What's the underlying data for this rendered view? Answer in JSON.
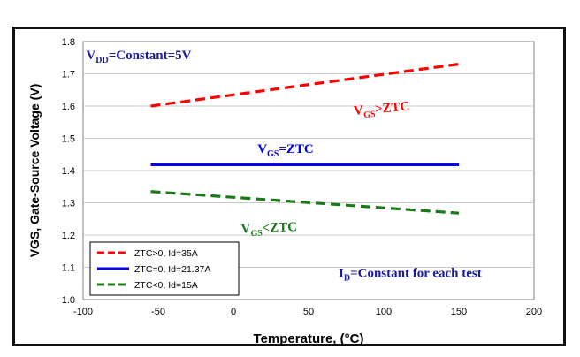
{
  "chart_data": {
    "type": "line",
    "xlabel": "Temperature, (°C)",
    "ylabel": "VGS, Gate-Source Voltage (V)",
    "xlim": [
      -100,
      200
    ],
    "ylim": [
      1.0,
      1.8
    ],
    "x_ticks": [
      "-100",
      "-50",
      "0",
      "50",
      "100",
      "150",
      "200"
    ],
    "y_ticks": [
      "1.0",
      "1.1",
      "1.2",
      "1.3",
      "1.4",
      "1.5",
      "1.6",
      "1.7",
      "1.8"
    ],
    "grid": "horizontal",
    "legend_position": "bottom-left",
    "series": [
      {
        "name": "ZTC>0, Id=35A",
        "color": "#ff0000",
        "dash": "dashed",
        "x": [
          -55,
          150
        ],
        "y": [
          1.6,
          1.73
        ]
      },
      {
        "name": "ZTC=0, Id=21.37A",
        "color": "#0000ee",
        "dash": "solid",
        "x": [
          -55,
          150
        ],
        "y": [
          1.418,
          1.418
        ]
      },
      {
        "name": "ZTC<0, Id=15A",
        "color": "#1a7a1a",
        "dash": "dashed",
        "x": [
          -55,
          150
        ],
        "y": [
          1.335,
          1.268
        ]
      }
    ],
    "annotations": [
      {
        "id": "vdd",
        "text": "VDD=Constant=5V",
        "main": "V",
        "sub": "DD",
        "rest": "=Constant=5V",
        "color": "#1a1a9a",
        "x": -98,
        "y": 1.745
      },
      {
        "id": "gt",
        "text": "VGS>ZTC",
        "main": "V",
        "sub": "GS",
        "rest": ">ZTC",
        "color": "#ff0000",
        "x": 80,
        "y": 1.58,
        "rotate": -5
      },
      {
        "id": "eq",
        "text": "VGS=ZTC",
        "main": "V",
        "sub": "GS",
        "rest": "=ZTC",
        "color": "#0000ee",
        "x": 16,
        "y": 1.455
      },
      {
        "id": "lt",
        "text": "VGS<ZTC",
        "main": "V",
        "sub": "GS",
        "rest": "<ZTC",
        "color": "#1a7a1a",
        "x": 5,
        "y": 1.21,
        "rotate": -2
      },
      {
        "id": "id",
        "text": "ID=Constant for each test",
        "main": "I",
        "sub": "D",
        "rest": "=Constant for each test",
        "color": "#1a1a9a",
        "x": 70,
        "y": 1.07
      }
    ]
  }
}
